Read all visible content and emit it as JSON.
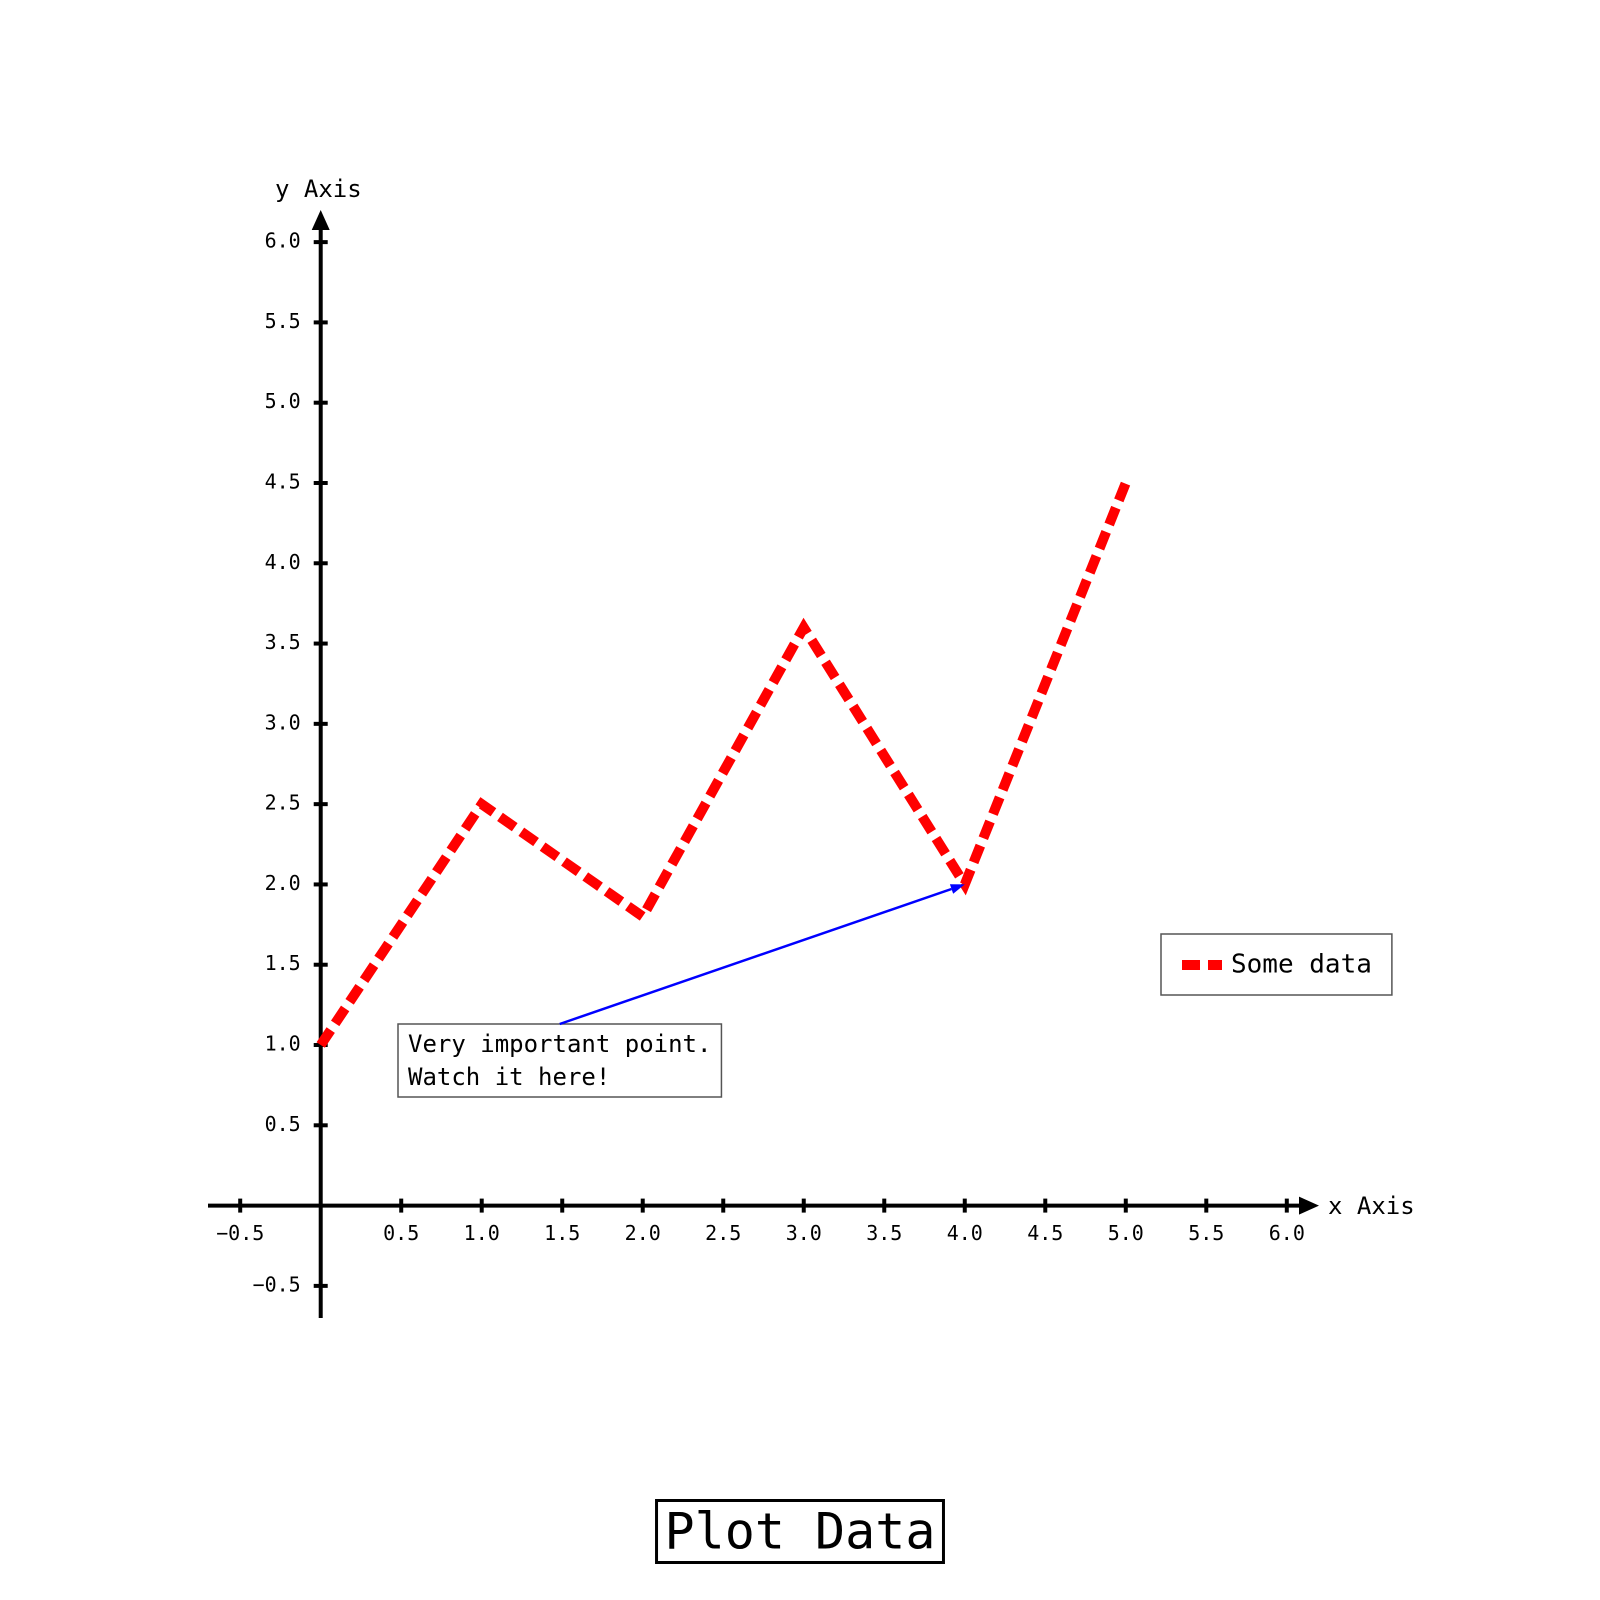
{
  "chart_data": {
    "type": "line",
    "title": "Plot Data",
    "x_label": "x Axis",
    "y_label": "y Axis",
    "x": [
      0,
      1,
      2,
      3,
      4,
      5
    ],
    "series": [
      {
        "name": "Some data",
        "color": "#ff0000",
        "values": [
          1,
          2.5,
          1.8,
          3.6,
          2,
          4.5
        ]
      }
    ],
    "xlim": [
      -0.7,
      6.2
    ],
    "ylim": [
      -0.7,
      6.2
    ],
    "xticks": [
      {
        "value": -0.5,
        "label": "−0.5"
      },
      0.5,
      {
        "value": 1,
        "label": "1.0"
      },
      1.5,
      {
        "value": 2,
        "label": "2.0"
      },
      2.5,
      {
        "value": 3,
        "label": "3.0"
      },
      3.5,
      {
        "value": 4,
        "label": "4.0"
      },
      4.5,
      {
        "value": 5,
        "label": "5.0"
      },
      5.5,
      {
        "value": 6,
        "label": "6.0"
      }
    ],
    "yticks": [
      {
        "value": -0.5,
        "label": "−0.5"
      },
      0.5,
      {
        "value": 1,
        "label": "1.0"
      },
      1.5,
      {
        "value": 2,
        "label": "2.0"
      },
      2.5,
      {
        "value": 3,
        "label": "3.0"
      },
      3.5,
      {
        "value": 4,
        "label": "4.0"
      },
      4.5,
      {
        "value": 5,
        "label": "5.0"
      },
      5.5,
      {
        "value": 6,
        "label": "6.0"
      }
    ],
    "annotation": {
      "lines": [
        "Very important point.",
        "Watch it here!"
      ],
      "x": 4,
      "y": 2
    },
    "legend": "right",
    "grid": false
  }
}
